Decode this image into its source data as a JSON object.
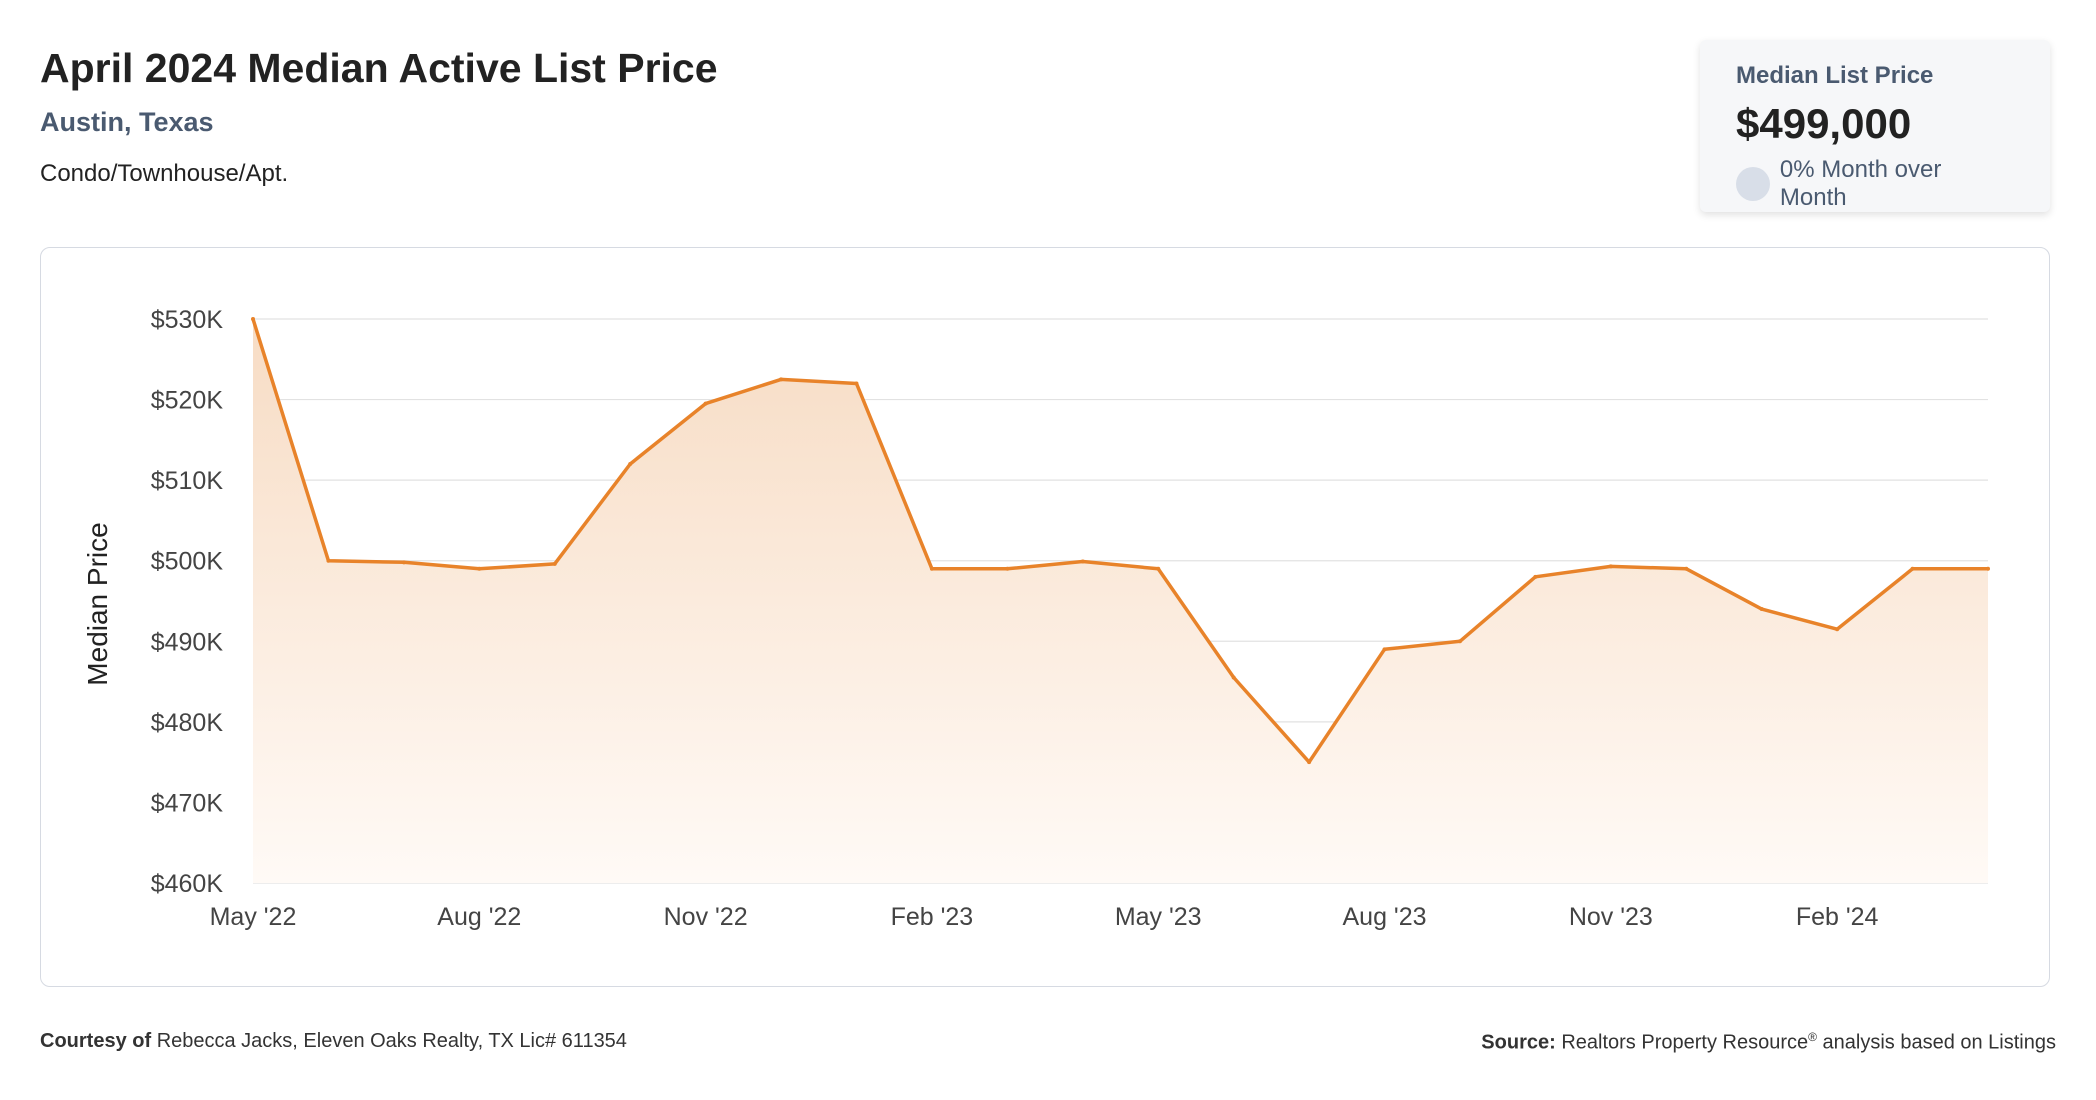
{
  "header": {
    "title": "April 2024 Median Active List Price",
    "location": "Austin, Texas",
    "property_type": "Condo/Townhouse/Apt."
  },
  "kpi": {
    "label": "Median List Price",
    "value": "$499,000",
    "change": "0% Month over Month"
  },
  "footer": {
    "courtesy_label": "Courtesy of",
    "courtesy_text": "Rebecca Jacks, Eleven Oaks Realty, TX Lic# 611354",
    "source_label": "Source:",
    "source_name": "Realtors Property Resource",
    "source_mark": "®",
    "source_text": "analysis based on Listings"
  },
  "colors": {
    "line": "#e8832a",
    "fill_top": "#f7dcc4",
    "fill_bottom": "#fffaf6",
    "grid": "#e2e2e2"
  },
  "chart_data": {
    "type": "area",
    "title": "April 2024 Median Active List Price",
    "ylabel": "Median Price",
    "xlabel": "",
    "ylim": [
      460000,
      530000
    ],
    "y_ticks": [
      460000,
      470000,
      480000,
      490000,
      500000,
      510000,
      520000,
      530000
    ],
    "y_tick_labels": [
      "$460K",
      "$470K",
      "$480K",
      "$490K",
      "$500K",
      "$510K",
      "$520K",
      "$530K"
    ],
    "x_tick_labels": [
      "May '22",
      "Aug '22",
      "Nov '22",
      "Feb '23",
      "May '23",
      "Aug '23",
      "Nov '23",
      "Feb '24"
    ],
    "x_tick_indices": [
      0,
      3,
      6,
      9,
      12,
      15,
      18,
      21
    ],
    "grid": true,
    "legend": "none",
    "x": [
      "2022-05",
      "2022-06",
      "2022-07",
      "2022-08",
      "2022-09",
      "2022-10",
      "2022-11",
      "2022-12",
      "2023-01",
      "2023-02",
      "2023-03",
      "2023-04",
      "2023-05",
      "2023-06",
      "2023-07",
      "2023-08",
      "2023-09",
      "2023-10",
      "2023-11",
      "2023-12",
      "2024-01",
      "2024-02",
      "2024-03",
      "2024-04"
    ],
    "values": [
      530000,
      500000,
      499800,
      499000,
      499600,
      512000,
      519500,
      522500,
      522000,
      499000,
      499000,
      499900,
      499000,
      485500,
      475000,
      489000,
      490000,
      498000,
      499300,
      499000,
      494000,
      491500,
      499000,
      499000
    ]
  }
}
